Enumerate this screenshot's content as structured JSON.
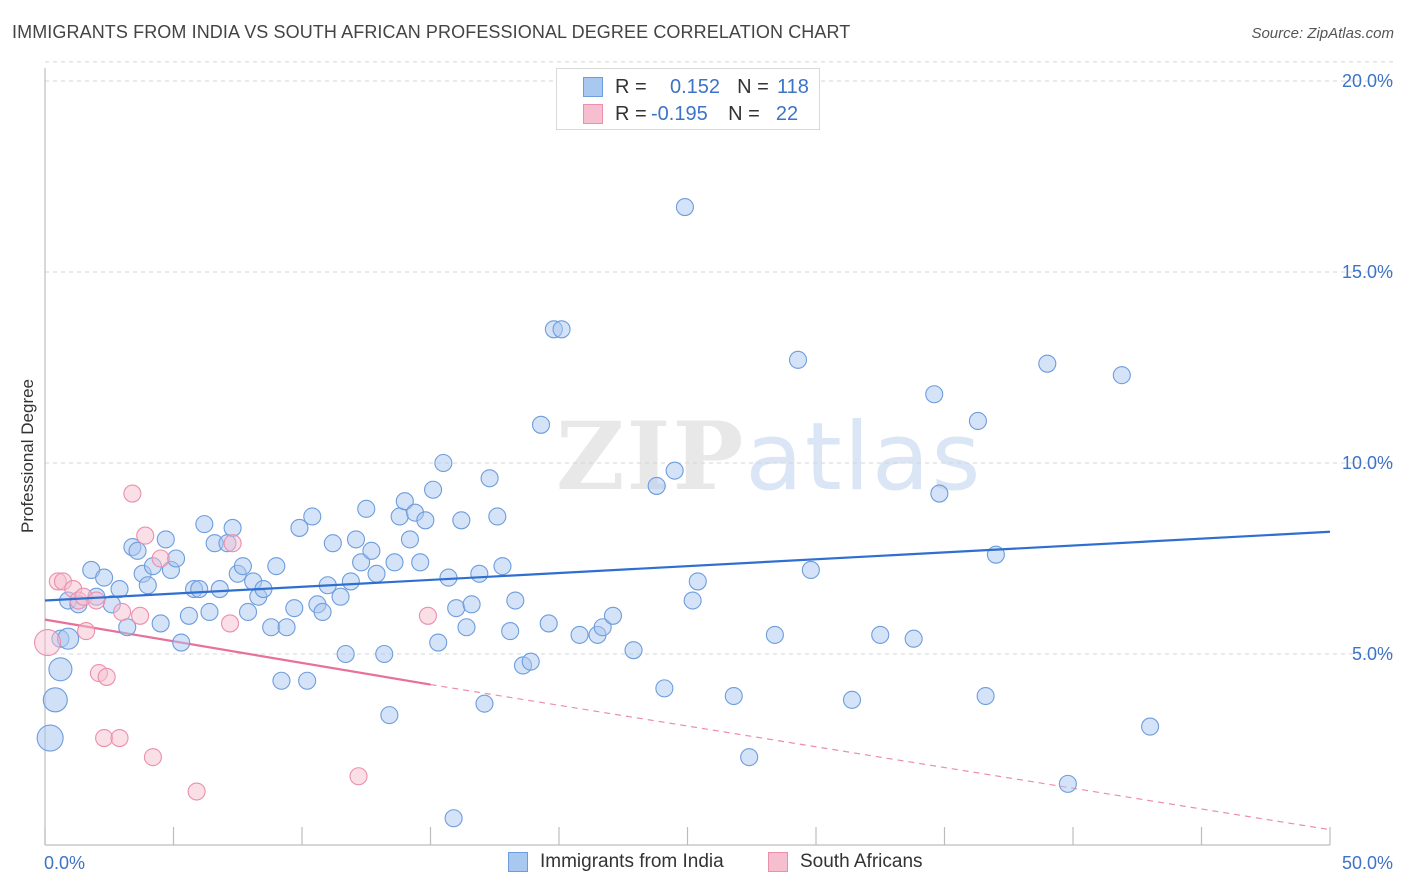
{
  "title": "IMMIGRANTS FROM INDIA VS SOUTH AFRICAN PROFESSIONAL DEGREE CORRELATION CHART",
  "source": "Source: ZipAtlas.com",
  "watermark": {
    "zip": "ZIP",
    "atlas": "atlas"
  },
  "legend_top": [
    {
      "r_label": "R =",
      "r_value": "0.152",
      "n_label": "N =",
      "n_value": "118"
    },
    {
      "r_label": "R =",
      "r_value": "-0.195",
      "n_label": "N =",
      "n_value": "22"
    }
  ],
  "legend_bottom": [
    {
      "label": "Immigrants from India"
    },
    {
      "label": "South Africans"
    }
  ],
  "colors": {
    "india_fill": "#a9c8f0",
    "india_stroke": "#6d9ddd",
    "india_line": "#2f6fd0",
    "sa_fill": "#f6bfd0",
    "sa_stroke": "#ea8fae",
    "sa_line": "#e8709a",
    "tick_text": "#3d73c6",
    "grid": "#d5d5d5"
  },
  "chart_data": {
    "type": "scatter",
    "title": "IMMIGRANTS FROM INDIA VS SOUTH AFRICAN PROFESSIONAL DEGREE CORRELATION CHART",
    "xlabel": "",
    "ylabel": "Professional Degree",
    "xlim": [
      0,
      50
    ],
    "ylim": [
      0,
      20.5
    ],
    "x_tick_labels": [
      "0.0%",
      "50.0%"
    ],
    "y_ticks": [
      5,
      10,
      15,
      20
    ],
    "y_tick_labels": [
      "5.0%",
      "10.0%",
      "15.0%",
      "20.0%"
    ],
    "grid": "horizontal dashed",
    "legend_placement": "top-center and bottom",
    "series": [
      {
        "name": "Immigrants from India",
        "r": 0.152,
        "n": 118,
        "trend": {
          "x": [
            0,
            50
          ],
          "y": [
            6.4,
            8.2
          ]
        },
        "points": [
          [
            0.6,
            5.4
          ],
          [
            0.9,
            6.4
          ],
          [
            1.3,
            6.3
          ],
          [
            1.8,
            7.2
          ],
          [
            2.0,
            6.5
          ],
          [
            2.3,
            7.0
          ],
          [
            2.6,
            6.3
          ],
          [
            2.9,
            6.7
          ],
          [
            3.2,
            5.7
          ],
          [
            3.4,
            7.8
          ],
          [
            3.6,
            7.7
          ],
          [
            3.8,
            7.1
          ],
          [
            4.0,
            6.8
          ],
          [
            4.2,
            7.3
          ],
          [
            4.5,
            5.8
          ],
          [
            4.7,
            8.0
          ],
          [
            4.9,
            7.2
          ],
          [
            5.1,
            7.5
          ],
          [
            5.3,
            5.3
          ],
          [
            5.6,
            6.0
          ],
          [
            5.8,
            6.7
          ],
          [
            6.0,
            6.7
          ],
          [
            6.2,
            8.4
          ],
          [
            6.4,
            6.1
          ],
          [
            6.6,
            7.9
          ],
          [
            6.8,
            6.7
          ],
          [
            7.1,
            7.9
          ],
          [
            7.3,
            8.3
          ],
          [
            7.5,
            7.1
          ],
          [
            7.7,
            7.3
          ],
          [
            7.9,
            6.1
          ],
          [
            8.1,
            6.9
          ],
          [
            8.3,
            6.5
          ],
          [
            8.5,
            6.7
          ],
          [
            8.8,
            5.7
          ],
          [
            9.0,
            7.3
          ],
          [
            9.2,
            4.3
          ],
          [
            9.4,
            5.7
          ],
          [
            9.7,
            6.2
          ],
          [
            9.9,
            8.3
          ],
          [
            10.2,
            4.3
          ],
          [
            10.4,
            8.6
          ],
          [
            10.6,
            6.3
          ],
          [
            10.8,
            6.1
          ],
          [
            11.0,
            6.8
          ],
          [
            11.2,
            7.9
          ],
          [
            11.5,
            6.5
          ],
          [
            11.7,
            5.0
          ],
          [
            11.9,
            6.9
          ],
          [
            12.1,
            8.0
          ],
          [
            12.3,
            7.4
          ],
          [
            12.5,
            8.8
          ],
          [
            12.7,
            7.7
          ],
          [
            12.9,
            7.1
          ],
          [
            13.2,
            5.0
          ],
          [
            13.4,
            3.4
          ],
          [
            13.6,
            7.4
          ],
          [
            13.8,
            8.6
          ],
          [
            14.0,
            9.0
          ],
          [
            14.2,
            8.0
          ],
          [
            14.4,
            8.7
          ],
          [
            14.6,
            7.4
          ],
          [
            14.8,
            8.5
          ],
          [
            15.1,
            9.3
          ],
          [
            15.3,
            5.3
          ],
          [
            15.5,
            10.0
          ],
          [
            15.7,
            7.0
          ],
          [
            15.9,
            0.7
          ],
          [
            16.0,
            6.2
          ],
          [
            16.2,
            8.5
          ],
          [
            16.4,
            5.7
          ],
          [
            16.6,
            6.3
          ],
          [
            16.9,
            7.1
          ],
          [
            17.1,
            3.7
          ],
          [
            17.3,
            9.6
          ],
          [
            17.6,
            8.6
          ],
          [
            17.8,
            7.3
          ],
          [
            18.1,
            5.6
          ],
          [
            18.3,
            6.4
          ],
          [
            18.6,
            4.7
          ],
          [
            18.9,
            4.8
          ],
          [
            19.3,
            11.0
          ],
          [
            19.6,
            5.8
          ],
          [
            19.8,
            13.5
          ],
          [
            20.1,
            13.5
          ],
          [
            20.8,
            5.5
          ],
          [
            21.5,
            5.5
          ],
          [
            21.7,
            5.7
          ],
          [
            22.1,
            6.0
          ],
          [
            22.9,
            5.1
          ],
          [
            23.8,
            9.4
          ],
          [
            24.1,
            4.1
          ],
          [
            24.5,
            9.8
          ],
          [
            24.9,
            16.7
          ],
          [
            25.2,
            6.4
          ],
          [
            25.4,
            6.9
          ],
          [
            26.8,
            3.9
          ],
          [
            27.4,
            2.3
          ],
          [
            28.4,
            5.5
          ],
          [
            29.3,
            12.7
          ],
          [
            29.8,
            7.2
          ],
          [
            31.4,
            3.8
          ],
          [
            32.5,
            5.5
          ],
          [
            33.8,
            5.4
          ],
          [
            34.6,
            11.8
          ],
          [
            34.8,
            9.2
          ],
          [
            36.3,
            11.1
          ],
          [
            36.6,
            3.9
          ],
          [
            37.0,
            7.6
          ],
          [
            39.0,
            12.6
          ],
          [
            39.8,
            1.6
          ],
          [
            41.9,
            12.3
          ],
          [
            43.0,
            3.1
          ]
        ],
        "large_points": [
          [
            0.2,
            2.8
          ],
          [
            0.4,
            3.8
          ],
          [
            0.6,
            4.6
          ],
          [
            0.9,
            5.4
          ]
        ]
      },
      {
        "name": "South Africans",
        "r": -0.195,
        "n": 22,
        "trend": {
          "x": [
            0,
            15
          ],
          "y": [
            5.9,
            4.2
          ],
          "extended_to": [
            50,
            0.4
          ]
        },
        "points": [
          [
            0.5,
            6.9
          ],
          [
            0.7,
            6.9
          ],
          [
            1.1,
            6.7
          ],
          [
            1.3,
            6.4
          ],
          [
            1.5,
            6.5
          ],
          [
            1.6,
            5.6
          ],
          [
            2.0,
            6.4
          ],
          [
            2.1,
            4.5
          ],
          [
            2.4,
            4.4
          ],
          [
            2.3,
            2.8
          ],
          [
            2.9,
            2.8
          ],
          [
            3.0,
            6.1
          ],
          [
            3.7,
            6.0
          ],
          [
            3.4,
            9.2
          ],
          [
            3.9,
            8.1
          ],
          [
            4.2,
            2.3
          ],
          [
            4.5,
            7.5
          ],
          [
            5.9,
            1.4
          ],
          [
            7.3,
            7.9
          ],
          [
            7.2,
            5.8
          ],
          [
            12.2,
            1.8
          ],
          [
            14.9,
            6.0
          ]
        ],
        "large_points": [
          [
            0.1,
            5.3
          ]
        ]
      }
    ]
  }
}
